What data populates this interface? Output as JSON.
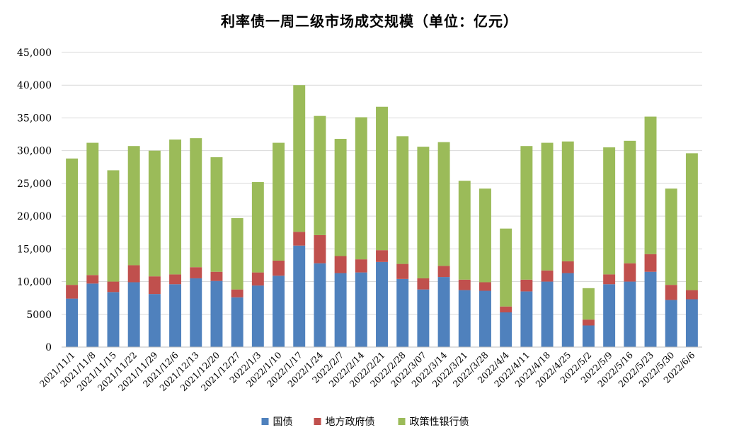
{
  "chart_data": {
    "type": "bar",
    "stacked": true,
    "title": "利率债一周二级市场成交规模（单位：亿元）",
    "xlabel": "",
    "ylabel": "",
    "ylim": [
      0,
      45000
    ],
    "yticks": [
      "0",
      "5000",
      "10,000",
      "15,000",
      "20,000",
      "25,000",
      "30,000",
      "35,000",
      "40,000",
      "45,000"
    ],
    "grid": true,
    "legend_position": "bottom",
    "categories": [
      "2021/11/1",
      "2021/11/8",
      "2021/11/15",
      "2021/11/22",
      "2021/11/29",
      "2021/12/6",
      "2021/12/13",
      "2021/12/20",
      "2021/12/27",
      "2022/1/3",
      "2022/1/10",
      "2022/1/17",
      "2022/1/24",
      "2022/2/7",
      "2022/2/14",
      "2022/2/21",
      "2022/2/28",
      "2022/3/07",
      "2022/3/14",
      "2022/3/21",
      "2022/3/28",
      "2022/4/4",
      "2022/4/11",
      "2022/4/18",
      "2022/4/25",
      "2022/5/2",
      "2022/5/9",
      "2022/5/16",
      "2022/5/23",
      "2022/5/30",
      "2022/6/6"
    ],
    "series": [
      {
        "name": "国债",
        "color": "#4F81BD",
        "values": [
          7400,
          9700,
          8400,
          9900,
          8100,
          9600,
          10500,
          10100,
          7600,
          9400,
          10900,
          15500,
          12800,
          11300,
          11400,
          13000,
          10400,
          8800,
          10700,
          8700,
          8600,
          5300,
          8500,
          10000,
          11300,
          3300,
          9600,
          10000,
          11500,
          7200,
          7300
        ]
      },
      {
        "name": "地方政府债",
        "color": "#C0504D",
        "values": [
          2100,
          1300,
          1600,
          2600,
          2700,
          1500,
          1700,
          1400,
          1200,
          2000,
          2300,
          2100,
          4300,
          2600,
          2000,
          1800,
          2300,
          1700,
          1700,
          1600,
          1300,
          900,
          1800,
          1700,
          1800,
          900,
          1500,
          2800,
          2700,
          2300,
          1400
        ]
      },
      {
        "name": "政策性银行债",
        "color": "#9BBB59",
        "values": [
          19300,
          20200,
          17000,
          18200,
          19200,
          20600,
          19700,
          17500,
          10900,
          13800,
          18000,
          22400,
          18200,
          17900,
          21700,
          21900,
          19500,
          20100,
          18900,
          15100,
          14300,
          11900,
          20400,
          19500,
          18300,
          4800,
          19400,
          18700,
          21000,
          14700,
          20900
        ]
      }
    ]
  }
}
